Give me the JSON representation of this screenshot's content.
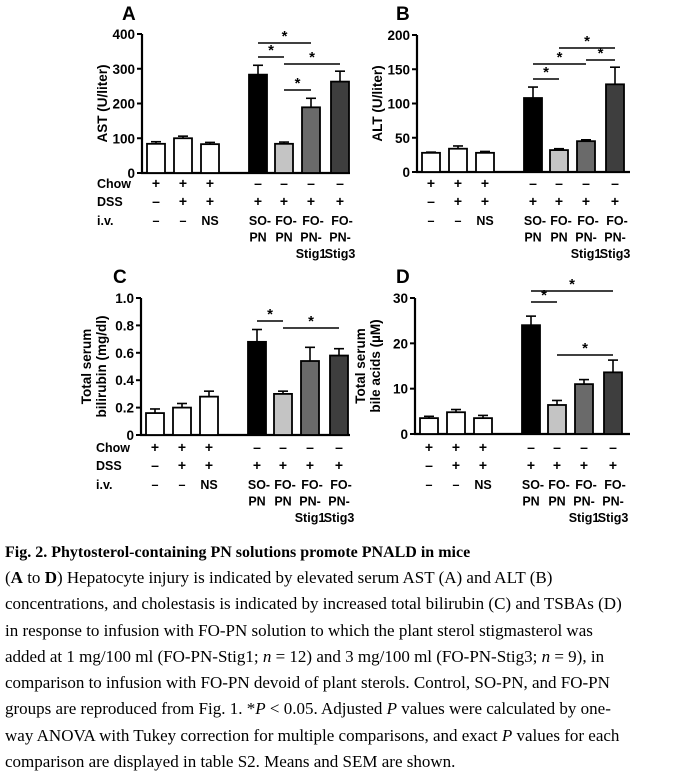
{
  "figure": {
    "row_labels": [
      "Chow",
      "DSS",
      "i.v."
    ],
    "conditions": {
      "chow": [
        "+",
        "+",
        "+",
        "–",
        "–",
        "–",
        "–"
      ],
      "dss": [
        "–",
        "+",
        "+",
        "+",
        "+",
        "+",
        "+"
      ],
      "iv": [
        [
          "–"
        ],
        [
          "–"
        ],
        [
          "NS"
        ],
        [
          "SO-",
          "PN"
        ],
        [
          "FO-",
          "PN"
        ],
        [
          "FO-",
          "PN-",
          "Stig1"
        ],
        [
          "FO-",
          "PN-",
          "Stig3"
        ]
      ]
    },
    "bar_colors": [
      "#ffffff",
      "#ffffff",
      "#ffffff",
      "#000000",
      "#c4c4c4",
      "#6a6a6a",
      "#3e3e3e"
    ],
    "significance_label": "*"
  },
  "chart_data": [
    {
      "panel": "A",
      "type": "bar",
      "ylabel": [
        "AST (U/liter)"
      ],
      "ylim": [
        0,
        400
      ],
      "ticks": [
        "0",
        "100",
        "200",
        "300",
        "400"
      ],
      "tick_values": [
        0,
        100,
        200,
        300,
        400
      ],
      "values": [
        84,
        100,
        83,
        283,
        84,
        189,
        263
      ],
      "errors": [
        6,
        6,
        5,
        27,
        5,
        26,
        30
      ],
      "comparisons": [
        [
          3,
          5
        ],
        [
          3,
          4
        ],
        [
          4,
          6
        ],
        [
          4,
          5
        ]
      ],
      "show_row_labels": true
    },
    {
      "panel": "B",
      "type": "bar",
      "ylabel": [
        "ALT (U/liter)"
      ],
      "ylim": [
        0,
        200
      ],
      "ticks": [
        "0",
        "50",
        "100",
        "150",
        "200"
      ],
      "tick_values": [
        0,
        50,
        100,
        150,
        200
      ],
      "values": [
        28,
        34,
        28,
        108,
        32,
        45,
        128
      ],
      "errors": [
        1,
        4,
        2,
        16,
        2,
        2,
        25
      ],
      "comparisons": [
        [
          4,
          6
        ],
        [
          3,
          5
        ],
        [
          5,
          6
        ],
        [
          3,
          4
        ]
      ],
      "show_row_labels": false
    },
    {
      "panel": "C",
      "type": "bar",
      "ylabel": [
        "Total serum",
        "bilirubin (mg/dl)"
      ],
      "ylim": [
        0,
        1.0
      ],
      "ticks": [
        "0",
        "0.2",
        "0.4",
        "0.6",
        "0.8",
        "1.0"
      ],
      "tick_values": [
        0,
        0.2,
        0.4,
        0.6,
        0.8,
        1.0
      ],
      "values": [
        0.16,
        0.2,
        0.28,
        0.68,
        0.3,
        0.54,
        0.58
      ],
      "errors": [
        0.03,
        0.03,
        0.04,
        0.09,
        0.02,
        0.1,
        0.05
      ],
      "comparisons": [
        [
          3,
          4
        ],
        [
          4,
          6
        ]
      ],
      "show_row_labels": true
    },
    {
      "panel": "D",
      "type": "bar",
      "ylabel": [
        "Total serum",
        "bile acids (µM)"
      ],
      "ylim": [
        0,
        30
      ],
      "ticks": [
        "0",
        "10",
        "20",
        "30"
      ],
      "tick_values": [
        0,
        10,
        20,
        30
      ],
      "values": [
        3.5,
        4.8,
        3.5,
        24,
        6.4,
        11,
        13.6
      ],
      "errors": [
        0.4,
        0.6,
        0.6,
        2,
        1,
        1,
        2.7
      ],
      "comparisons": [
        [
          3,
          6
        ],
        [
          3,
          4
        ],
        [
          4,
          6
        ]
      ],
      "show_row_labels": false
    }
  ],
  "caption": {
    "title": "Fig. 2. Phytosterol-containing PN solutions promote PNALD in mice",
    "lines": [
      [
        {
          "t": "(",
          "s": ""
        },
        {
          "t": "A",
          "s": "b"
        },
        {
          "t": " to ",
          "s": ""
        },
        {
          "t": "D",
          "s": "b"
        },
        {
          "t": ") Hepatocyte injury is indicated by elevated serum AST (A) and ALT (B)",
          "s": ""
        }
      ],
      [
        {
          "t": "concentrations, and cholestasis is indicated by increased total bilirubin (C) and TSBAs (D)",
          "s": ""
        }
      ],
      [
        {
          "t": "in response to infusion with FO-PN solution to which the plant sterol stigmasterol was",
          "s": ""
        }
      ],
      [
        {
          "t": "added at 1 mg/100 ml (FO-PN-Stig1; ",
          "s": ""
        },
        {
          "t": "n",
          "s": "i"
        },
        {
          "t": " = 12) and 3 mg/100 ml (FO-PN-Stig3; ",
          "s": ""
        },
        {
          "t": "n",
          "s": "i"
        },
        {
          "t": " = 9), in",
          "s": ""
        }
      ],
      [
        {
          "t": "comparison to infusion with FO-PN devoid of plant sterols. Control, SO-PN, and FO-PN",
          "s": ""
        }
      ],
      [
        {
          "t": "groups are reproduced from Fig. 1. *",
          "s": ""
        },
        {
          "t": "P",
          "s": "i"
        },
        {
          "t": " < 0.05. Adjusted ",
          "s": ""
        },
        {
          "t": "P",
          "s": "i"
        },
        {
          "t": " values were calculated by one-",
          "s": ""
        }
      ],
      [
        {
          "t": "way ANOVA with Tukey correction for multiple comparisons, and exact ",
          "s": ""
        },
        {
          "t": "P",
          "s": "i"
        },
        {
          "t": " values for each",
          "s": ""
        }
      ],
      [
        {
          "t": "comparison are displayed in table S2. Means and SEM are shown.",
          "s": ""
        }
      ]
    ]
  }
}
